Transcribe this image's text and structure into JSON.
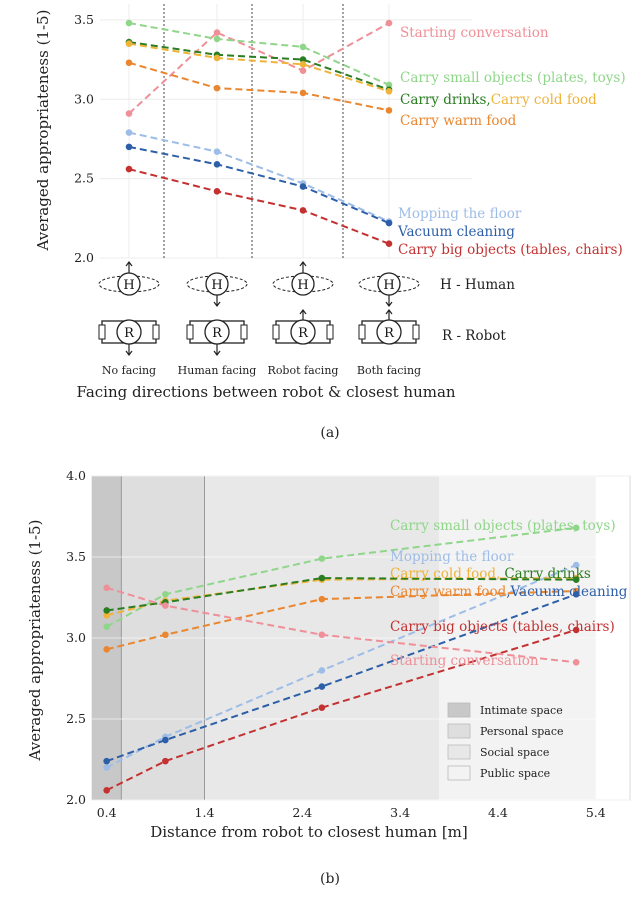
{
  "chart_data": [
    {
      "type": "line",
      "panel_caption": "(a)",
      "ylabel": "Averaged appropriateness (1-5)",
      "xlabel": "Facing directions between robot & closest human",
      "ylim": [
        2.0,
        3.6
      ],
      "yticks": [
        "2.0",
        "2.5",
        "3.0",
        "3.5"
      ],
      "categories": [
        "No facing",
        "Human facing",
        "Robot facing",
        "Both facing"
      ],
      "icon_legend": {
        "human": "H - Human",
        "robot": "R - Robot",
        "h_glyph": "H",
        "r_glyph": "R"
      },
      "grid": true,
      "series": [
        {
          "name": "Starting conversation",
          "color": "#ef8f98",
          "values": [
            2.91,
            3.42,
            3.18,
            3.48
          ]
        },
        {
          "name": "Carry small objects (plates, toys)",
          "color": "#8fd68a",
          "values": [
            3.48,
            3.38,
            3.33,
            3.09
          ]
        },
        {
          "name": "Carry drinks,",
          "color": "#2b7d22",
          "values": [
            3.36,
            3.28,
            3.25,
            3.06
          ]
        },
        {
          "name": "Carry cold food",
          "color": "#efb33a",
          "values": [
            3.35,
            3.26,
            3.22,
            3.05
          ]
        },
        {
          "name": "Carry warm food",
          "color": "#ea862f",
          "values": [
            3.23,
            3.07,
            3.04,
            2.93
          ]
        },
        {
          "name": "Mopping the floor",
          "color": "#9dbde8",
          "values": [
            2.79,
            2.67,
            2.47,
            2.23
          ]
        },
        {
          "name": "Vacuum cleaning",
          "color": "#2d5fa8",
          "values": [
            2.7,
            2.59,
            2.45,
            2.22
          ]
        },
        {
          "name": "Carry big objects (tables, chairs)",
          "color": "#c43131",
          "values": [
            2.56,
            2.42,
            2.3,
            2.09
          ]
        }
      ]
    },
    {
      "type": "line",
      "panel_caption": "(b)",
      "ylabel": "Averaged appropriateness (1-5)",
      "xlabel": "Distance from robot to closest human [m]",
      "xlim": [
        0.25,
        5.75
      ],
      "ylim": [
        2.0,
        4.0
      ],
      "xticks": [
        "0.4",
        "1.4",
        "2.4",
        "3.4",
        "4.4",
        "5.4"
      ],
      "yticks": [
        "2.0",
        "2.5",
        "3.0",
        "3.5",
        "4.0"
      ],
      "x": [
        0.4,
        1.0,
        2.6,
        5.2
      ],
      "zones": [
        {
          "name": "Intimate space",
          "from": 0.25,
          "to": 0.55
        },
        {
          "name": "Personal space",
          "from": 0.55,
          "to": 1.4
        },
        {
          "name": "Social space",
          "from": 1.4,
          "to": 3.8
        },
        {
          "name": "Public space",
          "from": 3.8,
          "to": 5.4
        }
      ],
      "series": [
        {
          "name": "Carry small objects (plates, toys)",
          "color": "#8fd68a",
          "values": [
            3.07,
            3.27,
            3.49,
            3.68
          ]
        },
        {
          "name": "Mopping the floor",
          "color": "#9dbde8",
          "values": [
            2.2,
            2.39,
            2.8,
            3.45
          ]
        },
        {
          "name": "Carry cold food,",
          "color": "#efb33a",
          "values": [
            3.14,
            3.23,
            3.36,
            3.37
          ]
        },
        {
          "name": "Carry drinks",
          "color": "#2b7d22",
          "values": [
            3.17,
            3.22,
            3.37,
            3.36
          ]
        },
        {
          "name": "Carry warm food",
          "color": "#ea862f",
          "values": [
            2.93,
            3.02,
            3.24,
            3.29
          ]
        },
        {
          "name": "Vacuum cleaning",
          "color": "#2d5fa8",
          "values": [
            2.24,
            2.37,
            2.7,
            3.27
          ]
        },
        {
          "name": "Carry big objects (tables, chairs)",
          "color": "#c43131",
          "values": [
            2.06,
            2.24,
            2.57,
            3.05
          ]
        },
        {
          "name": "Starting conversation",
          "color": "#ef8f98",
          "values": [
            3.31,
            3.2,
            3.02,
            2.85
          ]
        }
      ]
    }
  ]
}
